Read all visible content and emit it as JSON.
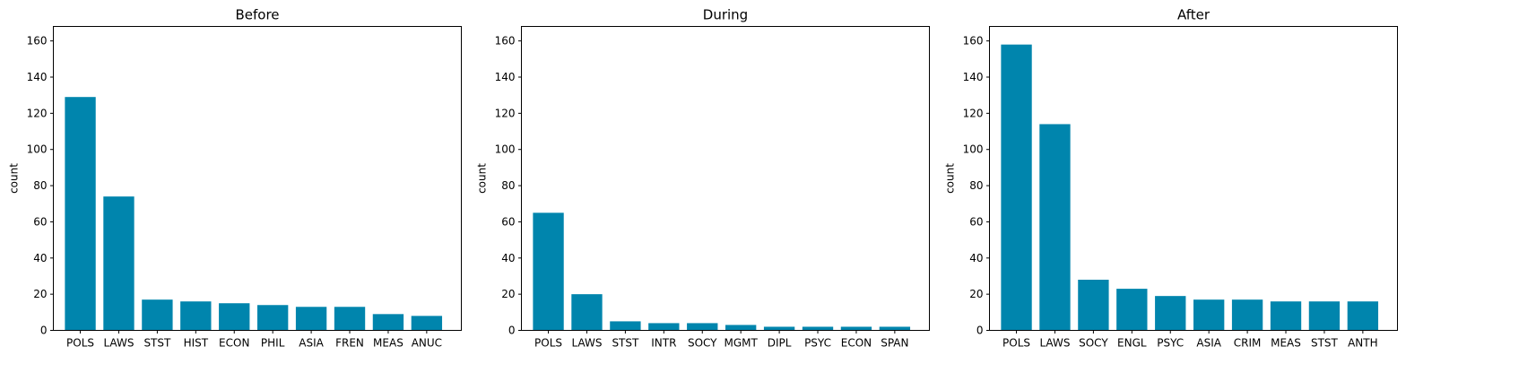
{
  "chart_data": [
    {
      "type": "bar",
      "title": "Before",
      "xlabel": "",
      "ylabel": "count",
      "ylim": [
        0,
        168
      ],
      "yticks": [
        0,
        20,
        40,
        60,
        80,
        100,
        120,
        140,
        160
      ],
      "grid": false,
      "color": "#0085ad",
      "categories": [
        "POLS",
        "LAWS",
        "STST",
        "HIST",
        "ECON",
        "PHIL",
        "ASIA",
        "FREN",
        "MEAS",
        "ANUC"
      ],
      "values": [
        129,
        74,
        17,
        16,
        15,
        14,
        13,
        13,
        9,
        8
      ]
    },
    {
      "type": "bar",
      "title": "During",
      "xlabel": "",
      "ylabel": "count",
      "ylim": [
        0,
        168
      ],
      "yticks": [
        0,
        20,
        40,
        60,
        80,
        100,
        120,
        140,
        160
      ],
      "grid": false,
      "color": "#0085ad",
      "categories": [
        "POLS",
        "LAWS",
        "STST",
        "INTR",
        "SOCY",
        "MGMT",
        "DIPL",
        "PSYC",
        "ECON",
        "SPAN"
      ],
      "values": [
        65,
        20,
        5,
        4,
        4,
        3,
        2,
        2,
        2,
        2
      ]
    },
    {
      "type": "bar",
      "title": "After",
      "xlabel": "",
      "ylabel": "count",
      "ylim": [
        0,
        168
      ],
      "yticks": [
        0,
        20,
        40,
        60,
        80,
        100,
        120,
        140,
        160
      ],
      "grid": false,
      "color": "#0085ad",
      "categories": [
        "POLS",
        "LAWS",
        "SOCY",
        "ENGL",
        "PSYC",
        "ASIA",
        "CRIM",
        "MEAS",
        "STST",
        "ANTH"
      ],
      "values": [
        158,
        114,
        28,
        23,
        19,
        17,
        17,
        16,
        16,
        16
      ]
    }
  ]
}
